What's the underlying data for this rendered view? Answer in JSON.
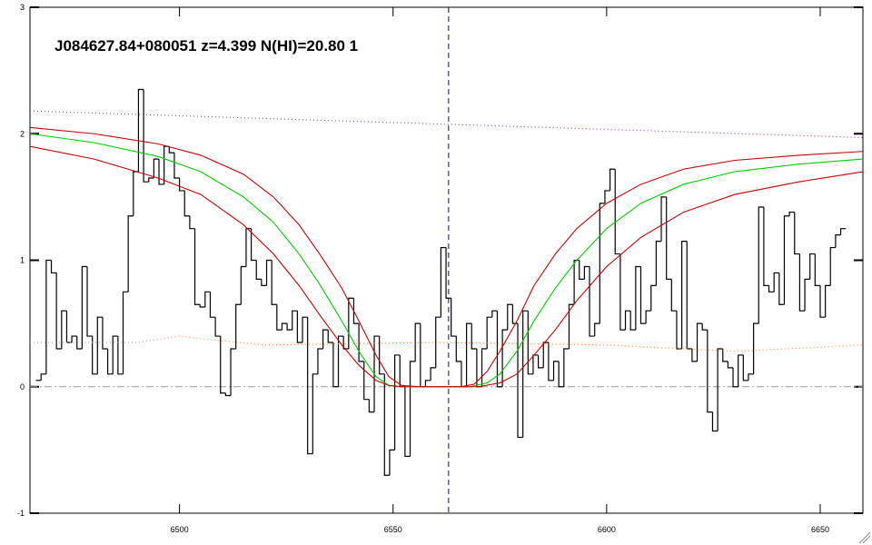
{
  "chart_data": {
    "type": "spectrum",
    "title": "J084627.84+080051 z=4.399 N(HI)=20.80 1",
    "xlim": [
      6465,
      6660
    ],
    "ylim": [
      -1,
      3
    ],
    "xticks": [
      6500,
      6550,
      6600,
      6650
    ],
    "yticks": [
      -1,
      0,
      1,
      2,
      3
    ],
    "zero_line": 0,
    "line_center": 6563,
    "series": [
      {
        "color": "#000000",
        "style": "step",
        "x": [
          6467.0,
          6468.2,
          6469.4,
          6470.6,
          6471.8,
          6473.0,
          6474.2,
          6475.4,
          6476.6,
          6477.8,
          6479.0,
          6480.2,
          6481.4,
          6482.6,
          6483.8,
          6485.0,
          6486.2,
          6487.4,
          6488.6,
          6489.8,
          6491.0,
          6492.2,
          6493.4,
          6494.6,
          6495.8,
          6497.0,
          6498.2,
          6499.4,
          6500.6,
          6501.8,
          6503.0,
          6504.2,
          6505.4,
          6506.6,
          6507.8,
          6509.0,
          6510.2,
          6511.4,
          6512.6,
          6513.8,
          6515.0,
          6516.2,
          6517.4,
          6518.6,
          6519.8,
          6521.0,
          6522.2,
          6523.4,
          6524.6,
          6525.8,
          6527.0,
          6528.2,
          6529.4,
          6530.6,
          6531.8,
          6533.0,
          6534.2,
          6535.4,
          6536.6,
          6537.8,
          6539.0,
          6540.2,
          6541.4,
          6542.6,
          6543.8,
          6545.0,
          6546.2,
          6547.4,
          6548.6,
          6549.8,
          6551.0,
          6552.2,
          6553.4,
          6554.6,
          6555.8,
          6557.0,
          6558.2,
          6559.4,
          6560.6,
          6561.8,
          6563.0,
          6564.2,
          6565.4,
          6566.6,
          6567.8,
          6569.0,
          6570.2,
          6571.4,
          6572.6,
          6573.8,
          6575.0,
          6576.2,
          6577.4,
          6578.6,
          6579.8,
          6581.0,
          6582.2,
          6583.4,
          6584.6,
          6585.8,
          6587.0,
          6588.2,
          6589.4,
          6590.6,
          6591.8,
          6593.0,
          6594.2,
          6595.4,
          6596.6,
          6597.8,
          6599.0,
          6600.2,
          6601.4,
          6602.6,
          6603.8,
          6605.0,
          6606.2,
          6607.4,
          6608.6,
          6609.8,
          6611.0,
          6612.2,
          6613.4,
          6614.6,
          6615.8,
          6617.0,
          6618.2,
          6619.4,
          6620.6,
          6621.8,
          6623.0,
          6624.2,
          6625.4,
          6626.6,
          6627.8,
          6629.0,
          6630.2,
          6631.4,
          6632.6,
          6633.8,
          6635.0,
          6636.2,
          6637.4,
          6638.6,
          6639.8,
          6641.0,
          6642.2,
          6643.4,
          6644.6,
          6645.8,
          6647.0,
          6648.2,
          6649.4,
          6650.6,
          6651.8,
          6653.0,
          6654.2,
          6655.4
        ],
        "values": [
          0.05,
          0.1,
          1.0,
          0.9,
          0.3,
          0.6,
          0.35,
          0.4,
          0.3,
          0.95,
          0.4,
          0.1,
          0.55,
          0.3,
          0.1,
          0.4,
          0.1,
          0.75,
          1.35,
          1.7,
          2.35,
          1.62,
          1.65,
          1.8,
          1.6,
          1.9,
          1.85,
          1.65,
          1.55,
          1.35,
          1.25,
          0.65,
          0.63,
          0.75,
          0.55,
          0.4,
          -0.05,
          -0.07,
          0.3,
          0.65,
          0.95,
          1.25,
          1.0,
          0.85,
          0.8,
          1.0,
          0.65,
          0.45,
          0.5,
          0.45,
          0.6,
          0.35,
          0.55,
          -0.53,
          0.1,
          0.3,
          0.45,
          0.35,
          0.0,
          0.4,
          0.3,
          0.7,
          0.5,
          0.2,
          -0.1,
          -0.2,
          0.4,
          0.1,
          -0.7,
          -0.5,
          0.25,
          0.0,
          -0.55,
          0.2,
          0.5,
          0.0,
          0.05,
          0.15,
          0.55,
          1.1,
          0.7,
          0.4,
          0.2,
          0.0,
          0.5,
          0.3,
          0.0,
          0.3,
          0.55,
          0.6,
          0.0,
          0.45,
          0.65,
          0.5,
          -0.4,
          0.6,
          0.1,
          0.25,
          0.15,
          0.35,
          0.05,
          0.2,
          0.0,
          0.3,
          0.65,
          1.0,
          0.85,
          0.95,
          0.4,
          0.5,
          1.45,
          1.55,
          1.72,
          1.05,
          0.45,
          0.6,
          0.45,
          0.95,
          0.5,
          0.6,
          0.8,
          1.15,
          1.5,
          0.85,
          0.6,
          0.3,
          1.15,
          0.3,
          0.2,
          0.5,
          0.45,
          -0.2,
          -0.35,
          0.3,
          0.2,
          0.15,
          0.0,
          0.25,
          0.05,
          0.1,
          0.5,
          1.42,
          0.8,
          0.75,
          0.9,
          0.65,
          1.35,
          1.38,
          1.05,
          0.6,
          0.85,
          1.05,
          0.8,
          0.55,
          0.8,
          1.1,
          1.2,
          1.25
        ]
      },
      {
        "color": "#00cc00",
        "style": "line",
        "x": [
          6465,
          6480,
          6495,
          6505,
          6515,
          6522,
          6528,
          6533,
          6538,
          6542,
          6546,
          6549,
          6552,
          6560,
          6568,
          6572,
          6575,
          6579,
          6583,
          6588,
          6593,
          6600,
          6608,
          6618,
          6630,
          6645,
          6660
        ],
        "values": [
          2.0,
          1.93,
          1.82,
          1.7,
          1.5,
          1.3,
          1.05,
          0.8,
          0.52,
          0.28,
          0.08,
          0.01,
          0.0,
          0.0,
          0.0,
          0.03,
          0.1,
          0.28,
          0.52,
          0.78,
          1.0,
          1.25,
          1.45,
          1.6,
          1.7,
          1.76,
          1.8
        ]
      },
      {
        "color": "#cc0000",
        "style": "line",
        "x": [
          6465,
          6480,
          6495,
          6505,
          6515,
          6522,
          6528,
          6533,
          6538,
          6542,
          6546,
          6549,
          6552,
          6556,
          6566,
          6569,
          6572,
          6575,
          6579,
          6583,
          6588,
          6593,
          6600,
          6608,
          6618,
          6630,
          6645,
          6660
        ],
        "values": [
          2.05,
          2.0,
          1.92,
          1.83,
          1.68,
          1.5,
          1.28,
          1.04,
          0.78,
          0.52,
          0.25,
          0.08,
          0.01,
          0.0,
          0.0,
          0.02,
          0.12,
          0.28,
          0.52,
          0.8,
          1.05,
          1.25,
          1.45,
          1.6,
          1.72,
          1.79,
          1.83,
          1.86
        ]
      },
      {
        "color": "#cc0000",
        "style": "line",
        "x": [
          6465,
          6480,
          6495,
          6505,
          6515,
          6522,
          6528,
          6533,
          6538,
          6542,
          6546,
          6549,
          6552,
          6570,
          6575,
          6579,
          6583,
          6588,
          6593,
          6600,
          6608,
          6618,
          6630,
          6645,
          6660
        ],
        "values": [
          1.9,
          1.8,
          1.65,
          1.52,
          1.28,
          1.05,
          0.8,
          0.56,
          0.33,
          0.17,
          0.05,
          0.01,
          0.0,
          0.0,
          0.03,
          0.1,
          0.25,
          0.45,
          0.68,
          0.95,
          1.18,
          1.38,
          1.52,
          1.62,
          1.7
        ]
      },
      {
        "color": "#a020f0",
        "style": "dotted",
        "x": [
          6465,
          6660
        ],
        "values": [
          2.18,
          1.97
        ]
      },
      {
        "color": "#ff8c40",
        "style": "dotted",
        "x": [
          6465,
          6490,
          6500,
          6505,
          6520,
          6560,
          6600,
          6630,
          6660
        ],
        "values": [
          0.35,
          0.35,
          0.4,
          0.38,
          0.33,
          0.35,
          0.33,
          0.28,
          0.33
        ]
      }
    ]
  }
}
